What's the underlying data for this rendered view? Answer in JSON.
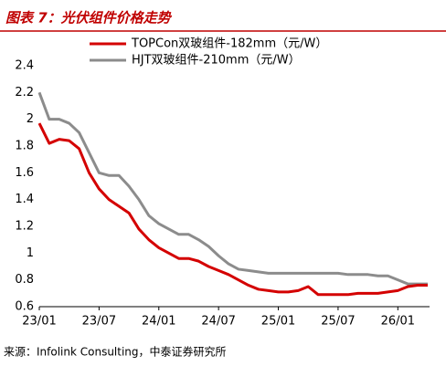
{
  "chart_data": {
    "type": "line",
    "title": "图表 7：光伏组件价格走势",
    "source": "来源：Infolink Consulting，中泰证券研究所",
    "categories": [
      "23/01",
      null,
      null,
      null,
      null,
      null,
      "23/07",
      null,
      null,
      null,
      null,
      null,
      "24/01",
      null,
      null,
      null,
      null,
      null,
      "24/07",
      null,
      null,
      null,
      null,
      null,
      "25/01",
      null,
      null,
      null,
      null,
      null,
      "25/07",
      null,
      null,
      null,
      null,
      null,
      "26/01",
      null,
      null,
      null
    ],
    "series": [
      {
        "name": "TOPCon双玻组件-182mm（元/W）",
        "color": "#d40000",
        "values": [
          1.97,
          1.82,
          1.85,
          1.84,
          1.78,
          1.6,
          1.48,
          1.4,
          1.35,
          1.3,
          1.18,
          1.1,
          1.04,
          1.0,
          0.96,
          0.96,
          0.94,
          0.9,
          0.87,
          0.84,
          0.8,
          0.76,
          0.73,
          0.72,
          0.71,
          0.71,
          0.72,
          0.75,
          0.69,
          0.69,
          0.69,
          0.69,
          0.7,
          0.7,
          0.7,
          0.71,
          0.72,
          0.75,
          0.76,
          0.76
        ]
      },
      {
        "name": "HJT双玻组件-210mm（元/W）",
        "color": "#8c8c8c",
        "values": [
          2.2,
          2.0,
          2.0,
          1.97,
          1.9,
          1.75,
          1.6,
          1.58,
          1.58,
          1.5,
          1.4,
          1.28,
          1.22,
          1.18,
          1.14,
          1.14,
          1.1,
          1.05,
          0.98,
          0.92,
          0.88,
          0.87,
          0.86,
          0.85,
          0.85,
          0.85,
          0.85,
          0.85,
          0.85,
          0.85,
          0.85,
          0.84,
          0.84,
          0.84,
          0.83,
          0.83,
          0.8,
          0.77,
          0.77,
          0.77
        ]
      }
    ],
    "ylim": [
      0.6,
      2.4
    ],
    "yticks": [
      0.6,
      0.8,
      1,
      1.2,
      1.4,
      1.6,
      1.8,
      2,
      2.2,
      2.4
    ],
    "legend": "top"
  }
}
